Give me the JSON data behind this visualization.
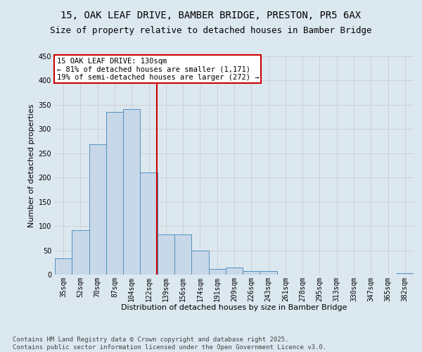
{
  "title_line1": "15, OAK LEAF DRIVE, BAMBER BRIDGE, PRESTON, PR5 6AX",
  "title_line2": "Size of property relative to detached houses in Bamber Bridge",
  "xlabel": "Distribution of detached houses by size in Bamber Bridge",
  "ylabel": "Number of detached properties",
  "categories": [
    "35sqm",
    "52sqm",
    "70sqm",
    "87sqm",
    "104sqm",
    "122sqm",
    "139sqm",
    "156sqm",
    "174sqm",
    "191sqm",
    "209sqm",
    "226sqm",
    "243sqm",
    "261sqm",
    "278sqm",
    "295sqm",
    "313sqm",
    "330sqm",
    "347sqm",
    "365sqm",
    "382sqm"
  ],
  "values": [
    33,
    91,
    268,
    336,
    341,
    211,
    83,
    83,
    50,
    11,
    14,
    7,
    7,
    0,
    0,
    0,
    0,
    0,
    0,
    0,
    3
  ],
  "bar_color": "#c8d8e8",
  "bar_edge_color": "#5090c0",
  "annotation_text": "15 OAK LEAF DRIVE: 130sqm\n← 81% of detached houses are smaller (1,171)\n19% of semi-detached houses are larger (272) →",
  "annotation_box_color": "#ffffff",
  "annotation_box_edge_color": "#cc0000",
  "vline_color": "#cc0000",
  "grid_color": "#cccccc",
  "background_color": "#dce8f0",
  "footnote": "Contains HM Land Registry data © Crown copyright and database right 2025.\nContains public sector information licensed under the Open Government Licence v3.0.",
  "ylim": [
    0,
    450
  ],
  "yticks": [
    0,
    50,
    100,
    150,
    200,
    250,
    300,
    350,
    400,
    450
  ],
  "title_fontsize": 10,
  "subtitle_fontsize": 9,
  "axis_label_fontsize": 8,
  "tick_fontsize": 7,
  "annotation_fontsize": 7.5,
  "footnote_fontsize": 6.5
}
